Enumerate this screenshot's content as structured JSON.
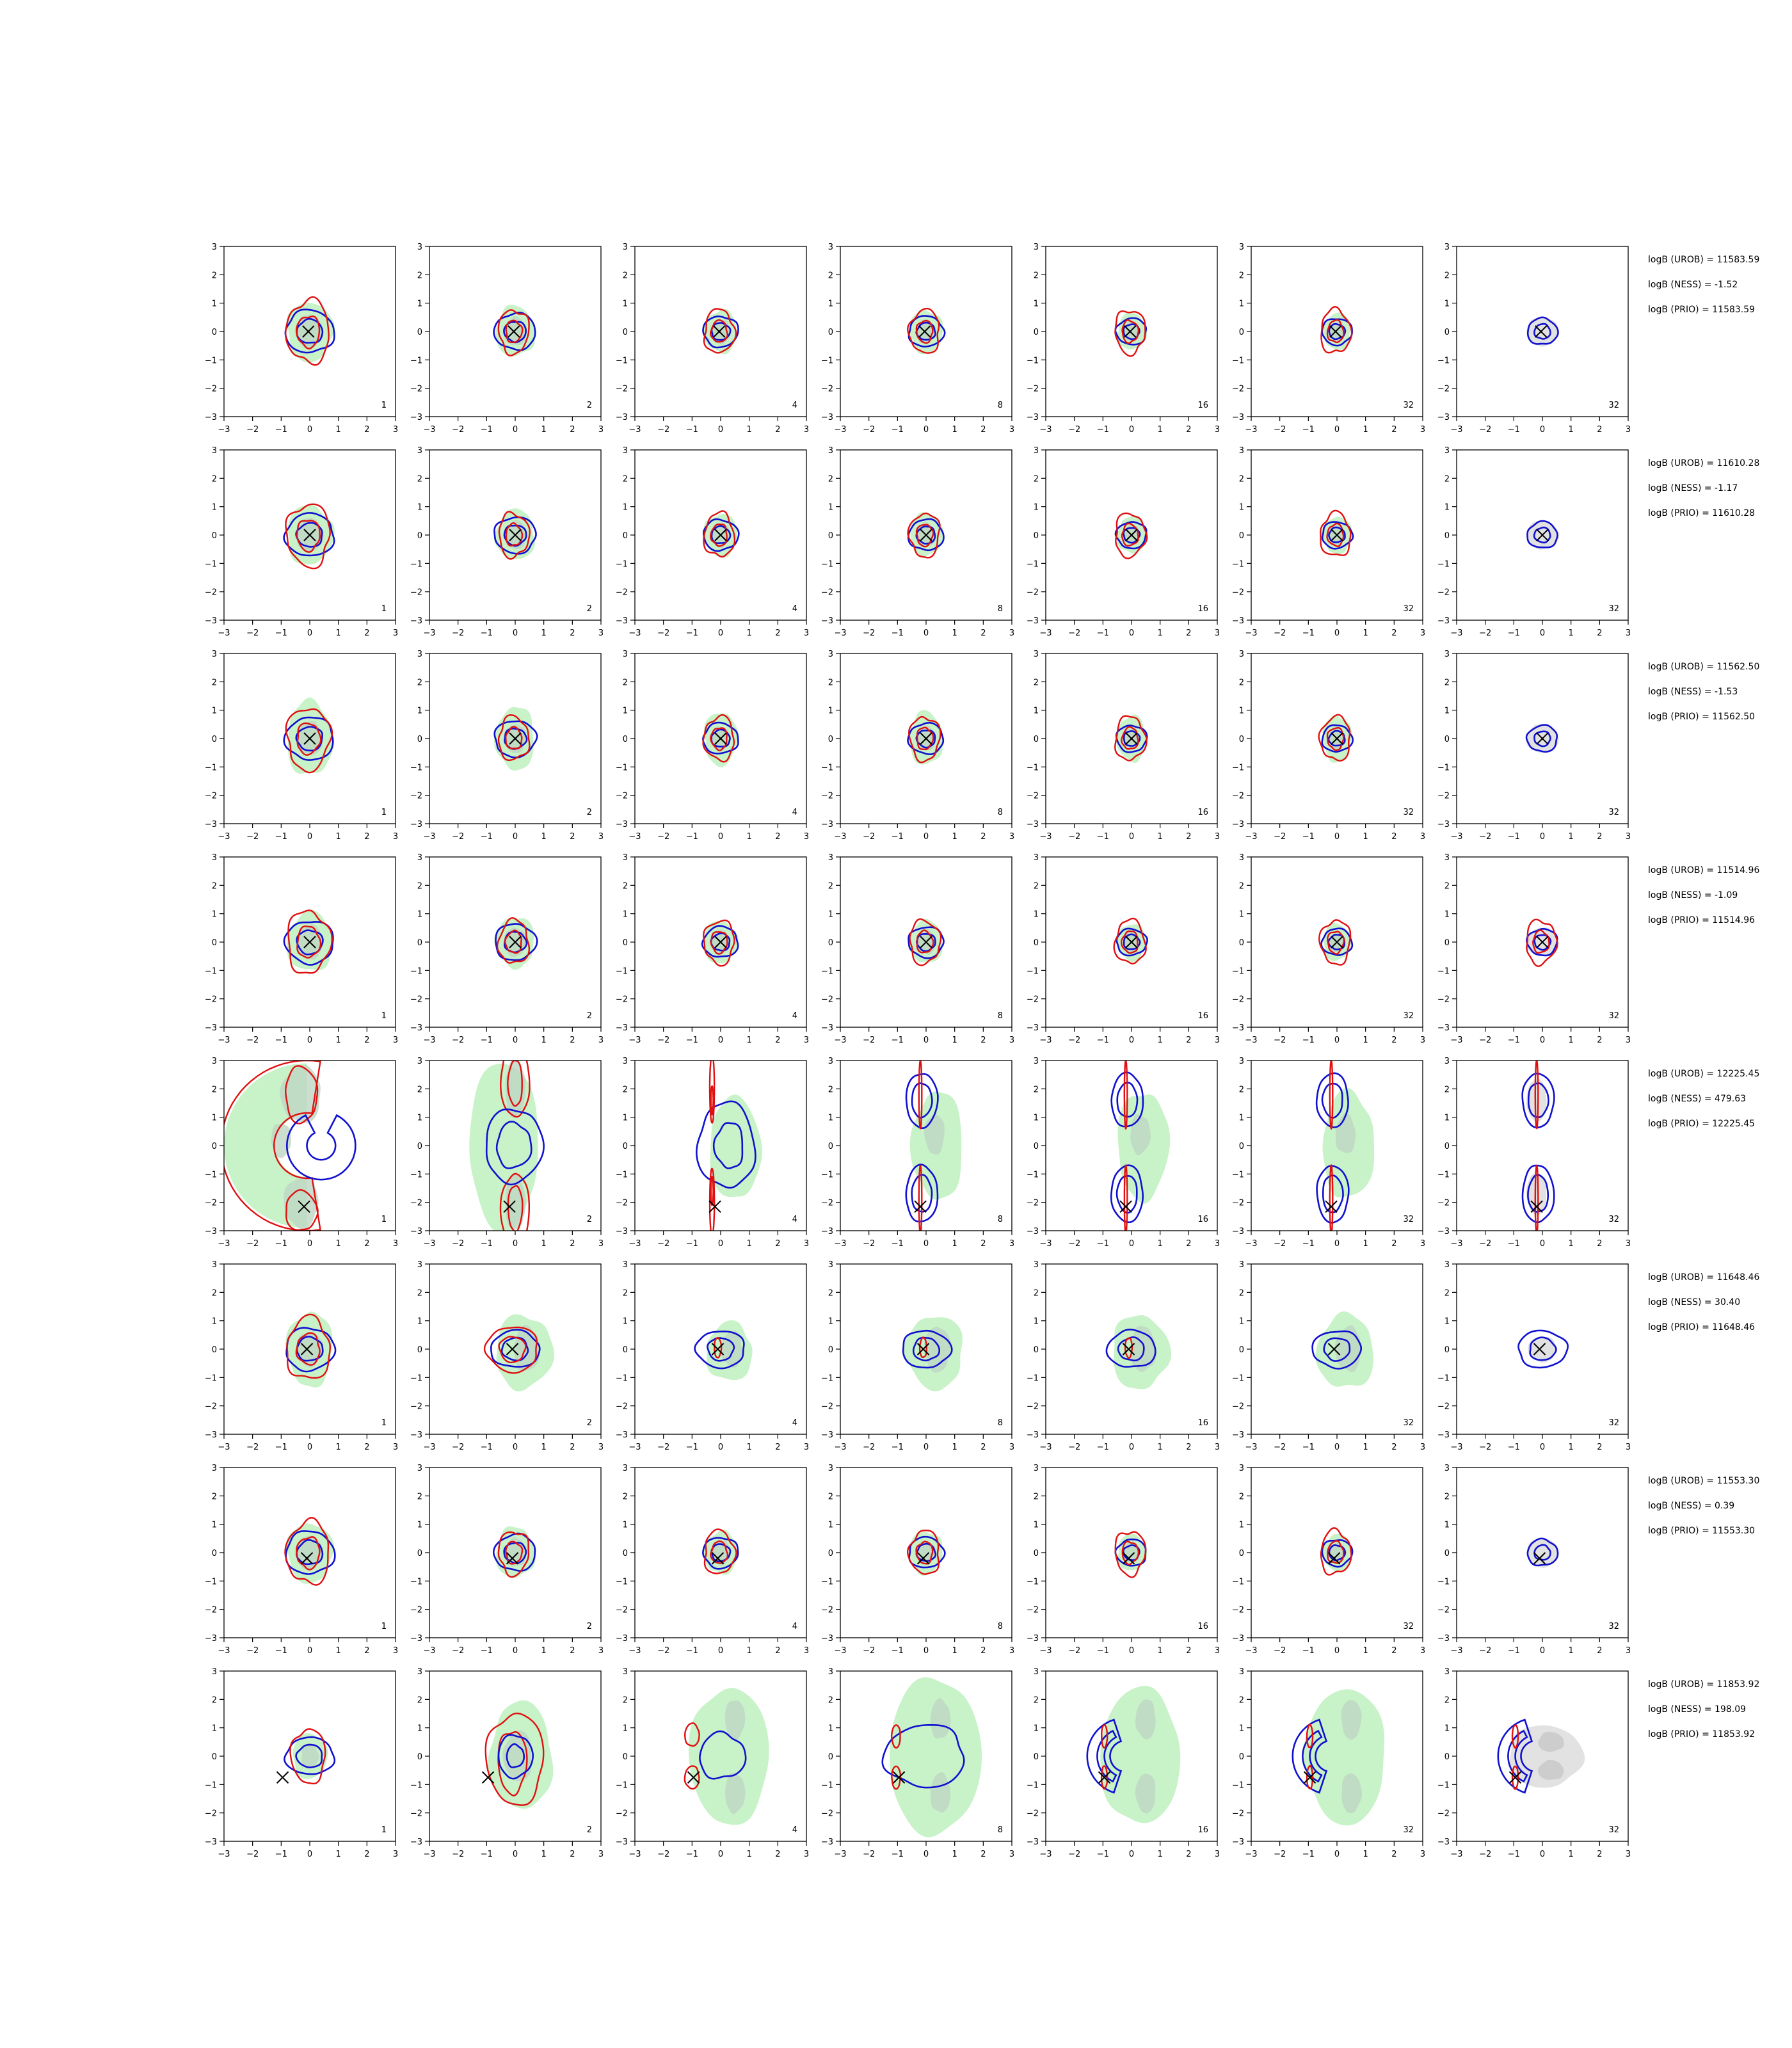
{
  "figure": {
    "rows": 8,
    "cols": 7,
    "axis": {
      "xlim": [
        -3,
        3
      ],
      "ylim": [
        -3,
        3
      ],
      "ticks": [
        -3,
        -2,
        -1,
        0,
        1,
        2,
        3
      ],
      "grid": false
    },
    "colors": {
      "fill_light": "#c8f2c8",
      "fill_dark": "#bfd6c4",
      "fill_gray": "#e2e2e2",
      "fill_gray_dark": "#cdcdcd",
      "contour_blue": "#1010d0",
      "contour_red": "#e01010",
      "marker": "#000000"
    },
    "panel_labels": [
      "1",
      "2",
      "4",
      "8",
      "16",
      "32",
      "32"
    ]
  },
  "chart_data": [
    {
      "type": "contour",
      "row": 1,
      "truth": [
        -0.05,
        0.0
      ],
      "annotations": [
        "logB (UROB) = 11583.59",
        "logB (NESS) = -1.52",
        "logB (PRIO) = 11583.59"
      ]
    },
    {
      "type": "contour",
      "row": 2,
      "truth": [
        0.0,
        0.0
      ],
      "annotations": [
        "logB (UROB) = 11610.28",
        "logB (NESS) = -1.17",
        "logB (PRIO) = 11610.28"
      ]
    },
    {
      "type": "contour",
      "row": 3,
      "truth": [
        0.0,
        0.0
      ],
      "annotations": [
        "logB (UROB) = 11562.50",
        "logB (NESS) = -1.53",
        "logB (PRIO) = 11562.50"
      ]
    },
    {
      "type": "contour",
      "row": 4,
      "truth": [
        0.0,
        0.0
      ],
      "annotations": [
        "logB (UROB) = 11514.96",
        "logB (NESS) = -1.09",
        "logB (PRIO) = 11514.96"
      ]
    },
    {
      "type": "contour",
      "row": 5,
      "truth": [
        -0.2,
        -2.15
      ],
      "annotations": [
        "logB (UROB) = 12225.45",
        "logB (NESS) = 479.63",
        "logB (PRIO) = 12225.45"
      ]
    },
    {
      "type": "contour",
      "row": 6,
      "truth": [
        -0.1,
        0.0
      ],
      "annotations": [
        "logB (UROB) = 11648.46",
        "logB (NESS) = 30.40",
        "logB (PRIO) = 11648.46"
      ]
    },
    {
      "type": "contour",
      "row": 7,
      "truth": [
        -0.1,
        -0.2
      ],
      "annotations": [
        "logB (UROB) = 11553.30",
        "logB (NESS) = 0.39",
        "logB (PRIO) = 11553.30"
      ]
    },
    {
      "type": "contour",
      "row": 8,
      "truth": [
        -0.95,
        -0.75
      ],
      "annotations": [
        "logB (UROB) = 11853.92",
        "logB (NESS) = 198.09",
        "logB (PRIO) = 11853.92"
      ]
    }
  ]
}
